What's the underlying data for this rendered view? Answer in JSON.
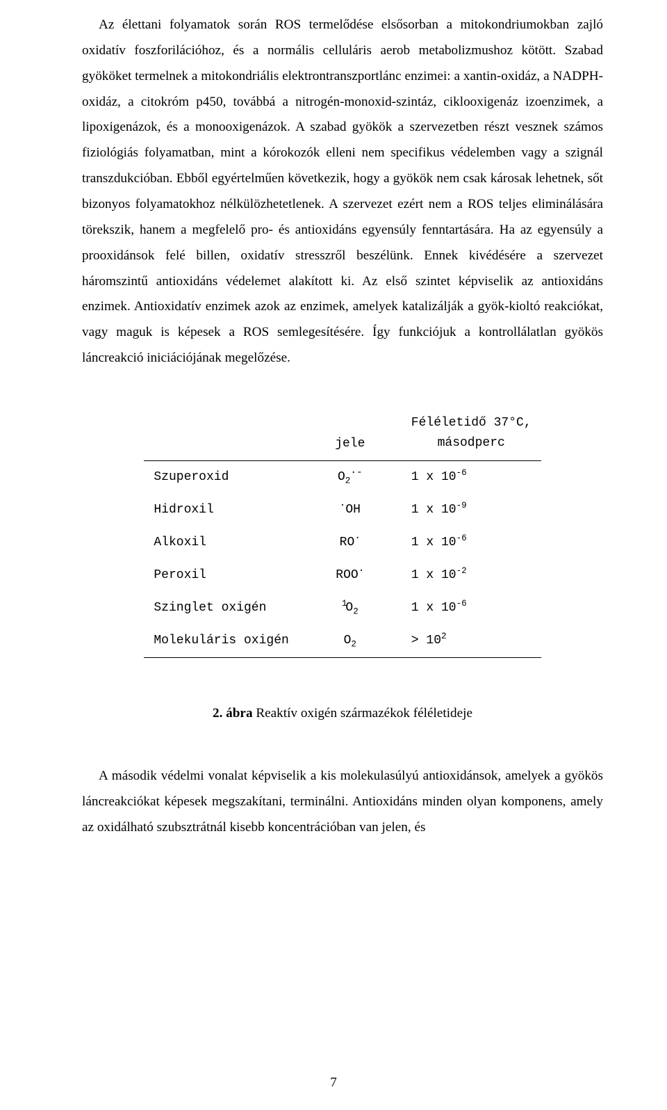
{
  "paragraph1": "Az élettani folyamatok során ROS termelődése elsősorban a mitokondriumokban zajló oxidatív foszforilációhoz, és a normális celluláris aerob metabolizmushoz kötött. Szabad gyököket termelnek a mitokondriális elektrontranszportlánc enzimei: a xantin-oxidáz, a NADPH-oxidáz, a citokróm p450, továbbá a nitrogén-monoxid-szintáz, ciklooxigenáz izoenzimek, a lipoxigenázok, és a monooxigenázok. A szabad gyökök a szervezetben részt vesznek számos fiziológiás folyamatban, mint a kórokozók elleni nem specifikus védelemben vagy a szignál transzdukcióban. Ebből egyértelműen következik, hogy a gyökök nem csak károsak lehetnek, sőt bizonyos folyamatokhoz nélkülözhetetlenek. A szervezet ezért nem a ROS teljes eliminálására törekszik, hanem a megfelelő pro- és antioxidáns egyensúly fenntartására. Ha az egyensúly a prooxidánsok felé billen, oxidatív stresszről beszélünk. Ennek kivédésére a szervezet háromszintű antioxidáns védelemet alakított ki. Az első szintet képviselik az antioxidáns enzimek. Antioxidatív enzimek azok az enzimek, amelyek katalizálják a gyök-kioltó reakciókat, vagy maguk is képesek a ROS semlegesítésére. Így funkciójuk a kontrollálatlan gyökös láncreakció iniciációjának megelőzése.",
  "table": {
    "header_col2": "jele",
    "header_col3_l1": "Féléletidő 37°C,",
    "header_col3_l2": "másodperc",
    "rows": [
      {
        "name": "Szuperoxid",
        "symbol_html": "O<sub>2</sub><span class='dot'>·-</span>",
        "value_html": "1 x 10<sup>-6</sup>"
      },
      {
        "name": "Hidroxil",
        "symbol_html": "<span class='dot'>·</span>OH",
        "value_html": "1 x 10<sup>-9</sup>"
      },
      {
        "name": "Alkoxil",
        "symbol_html": "RO<span class='dot'>·</span>",
        "value_html": "1 x 10<sup>-6</sup>"
      },
      {
        "name": "Peroxil",
        "symbol_html": "ROO<span class='dot'>·</span>",
        "value_html": "1 x 10<sup>-2</sup>"
      },
      {
        "name": "Szinglet oxigén",
        "symbol_html": "<span class='presup'>1</span>O<sub>2</sub>",
        "value_html": "1 x 10<sup>-6</sup>"
      },
      {
        "name": "Molekuláris oxigén",
        "symbol_html": "O<sub>2</sub>",
        "value_html": "> 10<sup>2</sup>"
      }
    ]
  },
  "caption_bold": "2. ábra",
  "caption_rest": " Reaktív oxigén származékok féléletideje",
  "paragraph2": "A második védelmi vonalat képviselik a kis molekulasúlyú antioxidánsok, amelyek a gyökös láncreakciókat képesek megszakítani, terminálni. Antioxidáns minden olyan komponens, amely az oxidálható szubsztrátnál kisebb koncentrációban van jelen, és",
  "page_number": "7"
}
